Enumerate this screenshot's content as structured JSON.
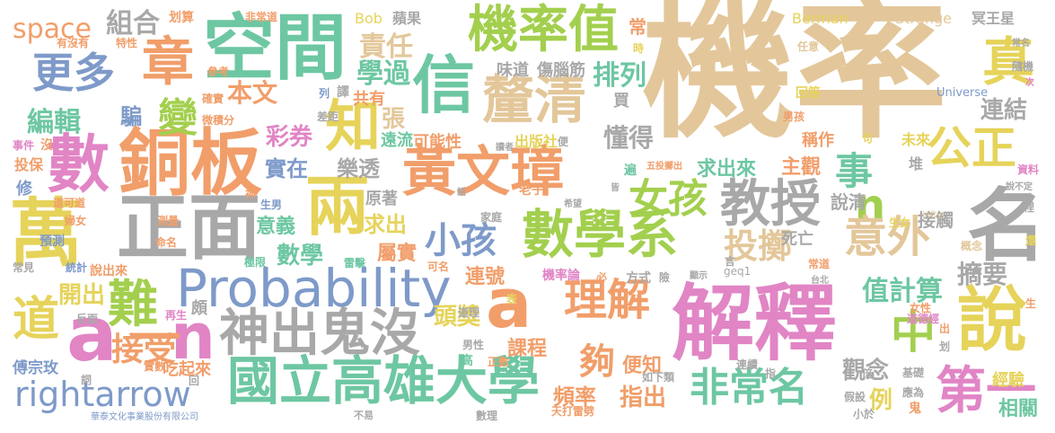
{
  "title": "",
  "palette": {
    "tan": "#e3c79a",
    "orange": "#f19e6a",
    "blue": "#7e9ac9",
    "green": "#a3cf4e",
    "gray": "#a8a8a8",
    "teal": "#6dc7a2",
    "pink": "#e185c5",
    "yellow": "#e6d35a"
  },
  "words": [
    {
      "id": "jilv",
      "text": "機率",
      "color": "tan"
    },
    {
      "id": "jieshi",
      "text": "解釋",
      "color": "pink"
    },
    {
      "id": "kongjian",
      "text": "空間",
      "color": "teal"
    },
    {
      "id": "tongban",
      "text": "銅板",
      "color": "orange"
    },
    {
      "id": "zhengmian",
      "text": "正面",
      "color": "gray"
    },
    {
      "id": "wan",
      "text": "萬",
      "color": "yellow"
    },
    {
      "id": "probability",
      "text": "Probability",
      "color": "blue"
    },
    {
      "id": "huangwenzhang",
      "text": "黃文璋",
      "color": "orange"
    },
    {
      "id": "guolixiongda",
      "text": "國立高雄大學",
      "color": "teal"
    },
    {
      "id": "jilvzhi",
      "text": "機率值",
      "color": "green"
    },
    {
      "id": "xin",
      "text": "信",
      "color": "teal"
    },
    {
      "id": "liang",
      "text": "兩",
      "color": "yellow"
    },
    {
      "id": "shuxuexi",
      "text": "數學系",
      "color": "green"
    },
    {
      "id": "jiaoshou",
      "text": "教授",
      "color": "gray"
    },
    {
      "id": "ming",
      "text": "名",
      "color": "gray"
    },
    {
      "id": "shenchuguimei",
      "text": "神出鬼沒",
      "color": "gray"
    },
    {
      "id": "a1",
      "text": "a",
      "color": "orange"
    },
    {
      "id": "a2",
      "text": "a",
      "color": "pink"
    },
    {
      "id": "n1",
      "text": "n",
      "color": "pink"
    },
    {
      "id": "n2",
      "text": "n",
      "color": "green"
    },
    {
      "id": "shuo",
      "text": "說",
      "color": "yellow"
    },
    {
      "id": "rightarrow",
      "text": "rightarrow",
      "color": "blue"
    },
    {
      "id": "feichangming",
      "text": "非常名",
      "color": "teal"
    },
    {
      "id": "diyi",
      "text": "第一",
      "color": "pink"
    },
    {
      "id": "liqing",
      "text": "釐清",
      "color": "tan"
    },
    {
      "id": "shu",
      "text": "數",
      "color": "pink"
    },
    {
      "id": "zhang",
      "text": "章",
      "color": "orange"
    },
    {
      "id": "gengduo",
      "text": "更多",
      "color": "blue"
    },
    {
      "id": "lijie",
      "text": "理解",
      "color": "orange"
    },
    {
      "id": "yiwai",
      "text": "意外",
      "color": "tan"
    },
    {
      "id": "gongzheng",
      "text": "公正",
      "color": "yellow"
    },
    {
      "id": "zhen",
      "text": "真",
      "color": "yellow"
    },
    {
      "id": "nan",
      "text": "難",
      "color": "green"
    },
    {
      "id": "zhong",
      "text": "中",
      "color": "green"
    },
    {
      "id": "dao",
      "text": "道",
      "color": "yellow"
    },
    {
      "id": "nuhai",
      "text": "女孩",
      "color": "green"
    },
    {
      "id": "xiaohai",
      "text": "小孩",
      "color": "blue"
    },
    {
      "id": "touzhi",
      "text": "投擲",
      "color": "tan"
    },
    {
      "id": "zhi",
      "text": "知",
      "color": "yellow"
    },
    {
      "id": "bian",
      "text": "變",
      "color": "green"
    },
    {
      "id": "shi",
      "text": "事",
      "color": "teal"
    },
    {
      "id": "jieshou",
      "text": "接受",
      "color": "orange"
    },
    {
      "id": "yi",
      "text": "一",
      "color": "orange"
    },
    {
      "id": "gou",
      "text": "夠",
      "color": "orange"
    },
    {
      "id": "bianji",
      "text": "編輯",
      "color": "teal"
    },
    {
      "id": "space",
      "text": "space",
      "color": "orange"
    },
    {
      "id": "zuhe",
      "text": "組合",
      "color": "gray"
    },
    {
      "id": "zeren",
      "text": "責任",
      "color": "tan"
    },
    {
      "id": "xueguo",
      "text": "學過",
      "color": "teal"
    },
    {
      "id": "pailie",
      "text": "排列",
      "color": "teal"
    },
    {
      "id": "benwen",
      "text": "本文",
      "color": "orange"
    },
    {
      "id": "pian",
      "text": "騙",
      "color": "blue"
    },
    {
      "id": "caiquan",
      "text": "彩券",
      "color": "pink"
    },
    {
      "id": "zhang2",
      "text": "張",
      "color": "tan"
    },
    {
      "id": "shizai",
      "text": "實在",
      "color": "blue"
    },
    {
      "id": "letou",
      "text": "樂透",
      "color": "gray"
    },
    {
      "id": "dongde",
      "text": "懂得",
      "color": "gray"
    },
    {
      "id": "qiuchulai",
      "text": "求出來",
      "color": "teal"
    },
    {
      "id": "zhuguan",
      "text": "主觀",
      "color": "orange"
    },
    {
      "id": "lianjie",
      "text": "連結",
      "color": "gray"
    },
    {
      "id": "zhijisuan",
      "text": "值計算",
      "color": "teal"
    },
    {
      "id": "zhaiyao",
      "text": "摘要",
      "color": "gray"
    },
    {
      "id": "yiyi",
      "text": "意義",
      "color": "teal"
    },
    {
      "id": "qiuchu",
      "text": "求出",
      "color": "yellow"
    },
    {
      "id": "shuxue",
      "text": "數學",
      "color": "teal"
    },
    {
      "id": "shushi",
      "text": "屬實",
      "color": "orange"
    },
    {
      "id": "kaichu",
      "text": "開出",
      "color": "yellow"
    },
    {
      "id": "toujiang",
      "text": "頭獎",
      "color": "yellow"
    },
    {
      "id": "kecheng",
      "text": "課程",
      "color": "orange"
    },
    {
      "id": "zhichu",
      "text": "指出",
      "color": "orange"
    },
    {
      "id": "guannian",
      "text": "觀念",
      "color": "gray"
    },
    {
      "id": "li",
      "text": "例",
      "color": "yellow"
    },
    {
      "id": "pinlv",
      "text": "頻率",
      "color": "orange"
    },
    {
      "id": "bianzhi",
      "text": "便知",
      "color": "orange"
    },
    {
      "id": "chuanzongmei",
      "text": "傅宗玫",
      "color": "blue"
    },
    {
      "id": "chiqilai",
      "text": "吃起來",
      "color": "orange"
    },
    {
      "id": "jingyan",
      "text": "經驗",
      "color": "yellow"
    },
    {
      "id": "xiangguan",
      "text": "相關",
      "color": "teal"
    },
    {
      "id": "shuoqing",
      "text": "說清",
      "color": "gray"
    },
    {
      "id": "jiechu",
      "text": "接觸",
      "color": "gray"
    },
    {
      "id": "keneng",
      "text": "可能性",
      "color": "orange"
    },
    {
      "id": "yuanliu",
      "text": "遠流",
      "color": "teal"
    },
    {
      "id": "chuban",
      "text": "出版社",
      "color": "yellow"
    },
    {
      "id": "chengzuo",
      "text": "稱作",
      "color": "orange"
    },
    {
      "id": "lianhao",
      "text": "連號",
      "color": "orange"
    },
    {
      "id": "gongyou",
      "text": "共有",
      "color": "orange"
    },
    {
      "id": "shangnao",
      "text": "傷腦筋",
      "color": "gray"
    },
    {
      "id": "weidao",
      "text": "味道",
      "color": "gray"
    },
    {
      "id": "yuanzhu",
      "text": "原著",
      "color": "gray"
    },
    {
      "id": "sihang",
      "text": "死亡",
      "color": "gray"
    },
    {
      "id": "laozi",
      "text": "老子",
      "color": "orange"
    },
    {
      "id": "jilvlun",
      "text": "機率論",
      "color": "pink"
    },
    {
      "id": "yuce",
      "text": "預測",
      "color": "blue"
    },
    {
      "id": "shuochulai",
      "text": "說出來",
      "color": "orange"
    },
    {
      "id": "fangshi",
      "text": "方式",
      "color": "gray"
    },
    {
      "id": "bob",
      "text": "Bob",
      "color": "yellow"
    },
    {
      "id": "pingguo",
      "text": "蘋果",
      "color": "gray"
    },
    {
      "id": "berman",
      "text": "Berman",
      "color": "yellow"
    },
    {
      "id": "strange",
      "text": "Strange",
      "color": "tan"
    },
    {
      "id": "mingwangxing",
      "text": "冥王星",
      "color": "gray"
    },
    {
      "id": "universe",
      "text": "Universe",
      "color": "blue"
    },
    {
      "id": "huasuan",
      "text": "划算",
      "color": "orange"
    },
    {
      "id": "feichangdao",
      "text": "非常道",
      "color": "orange"
    },
    {
      "id": "youmeiyou",
      "text": "有沒有",
      "color": "orange"
    },
    {
      "id": "texing",
      "text": "特性",
      "color": "orange"
    },
    {
      "id": "cankao",
      "text": "參考",
      "color": "orange"
    },
    {
      "id": "queshi",
      "text": "確實",
      "color": "orange"
    },
    {
      "id": "weijifen",
      "text": "微積分",
      "color": "orange"
    },
    {
      "id": "lie",
      "text": "列",
      "color": "blue"
    },
    {
      "id": "yi2",
      "text": "譯",
      "color": "gray"
    },
    {
      "id": "chaju",
      "text": "差距",
      "color": "gray"
    },
    {
      "id": "huida",
      "text": "回答",
      "color": "yellow"
    },
    {
      "id": "renyi",
      "text": "任意",
      "color": "tan"
    },
    {
      "id": "nanhai",
      "text": "男孩",
      "color": "orange"
    },
    {
      "id": "weilai",
      "text": "未來",
      "color": "yellow"
    },
    {
      "id": "shijian",
      "text": "事件",
      "color": "pink"
    },
    {
      "id": "toubao",
      "text": "投保",
      "color": "orange"
    },
    {
      "id": "xiu",
      "text": "修",
      "color": "blue"
    },
    {
      "id": "daokedao",
      "text": "道可道",
      "color": "orange"
    },
    {
      "id": "funu",
      "text": "婦女",
      "color": "orange"
    },
    {
      "id": "tongji",
      "text": "統計",
      "color": "blue"
    },
    {
      "id": "changjian",
      "text": "常見",
      "color": "gray"
    },
    {
      "id": "fanmian",
      "text": "反面",
      "color": "gray"
    },
    {
      "id": "ci",
      "text": "詞",
      "color": "gray"
    },
    {
      "id": "celiang",
      "text": "測量",
      "color": "orange"
    },
    {
      "id": "mingming",
      "text": "命名",
      "color": "orange"
    },
    {
      "id": "zaisheng",
      "text": "再生",
      "color": "pink"
    },
    {
      "id": "po",
      "text": "頗",
      "color": "gray"
    },
    {
      "id": "shishu",
      "text": "實數",
      "color": "orange"
    },
    {
      "id": "jixian",
      "text": "極限",
      "color": "teal"
    },
    {
      "id": "leiji",
      "text": "雷擊",
      "color": "teal"
    },
    {
      "id": "kering",
      "text": "可名",
      "color": "orange"
    },
    {
      "id": "daoli",
      "text": "道理",
      "color": "gray"
    },
    {
      "id": "nanxing",
      "text": "男性",
      "color": "gray"
    },
    {
      "id": "gao",
      "text": "高",
      "color": "teal"
    },
    {
      "id": "zhengshu",
      "text": "正數",
      "color": "orange"
    },
    {
      "id": "biao",
      "text": "表",
      "color": "yellow"
    },
    {
      "id": "jiating",
      "text": "家庭",
      "color": "gray"
    },
    {
      "id": "duzhe",
      "text": "讀者",
      "color": "gray"
    },
    {
      "id": "hua",
      "text": "話",
      "color": "gray"
    },
    {
      "id": "bi",
      "text": "必",
      "color": "orange"
    },
    {
      "id": "xiwang",
      "text": "希望",
      "color": "gray"
    },
    {
      "id": "geq1",
      "text": "geq1",
      "color": "gray"
    },
    {
      "id": "xian",
      "text": "險",
      "color": "gray"
    },
    {
      "id": "xianshi",
      "text": "顯示",
      "color": "gray"
    },
    {
      "id": "yan",
      "text": "言",
      "color": "gray"
    },
    {
      "id": "changdao",
      "text": "常道",
      "color": "orange"
    },
    {
      "id": "taibei",
      "text": "台北",
      "color": "gray"
    },
    {
      "id": "nuxing",
      "text": "女性",
      "color": "orange"
    },
    {
      "id": "daodejing",
      "text": "道德經",
      "color": "pink"
    },
    {
      "id": "ruxialei",
      "text": "如下類",
      "color": "gray"
    },
    {
      "id": "lianxu",
      "text": "連續",
      "color": "gray"
    },
    {
      "id": "zhi2",
      "text": "指",
      "color": "gray"
    },
    {
      "id": "jichu",
      "text": "基礎",
      "color": "gray"
    },
    {
      "id": "yingwei",
      "text": "應為",
      "color": "gray"
    },
    {
      "id": "jiashe",
      "text": "假設",
      "color": "gray"
    },
    {
      "id": "xiaoyu",
      "text": "小於",
      "color": "gray"
    },
    {
      "id": "gui",
      "text": "鬼",
      "color": "orange"
    },
    {
      "id": "tiandaleipi",
      "text": "天打雷劈",
      "color": "orange"
    },
    {
      "id": "shuli",
      "text": "數理",
      "color": "gray"
    },
    {
      "id": "buyi",
      "text": "不易",
      "color": "gray"
    },
    {
      "id": "huatai",
      "text": "華泰文化事業股份有限公司",
      "color": "blue"
    },
    {
      "id": "wutouzhi",
      "text": "五投擲出",
      "color": "orange"
    },
    {
      "id": "shuobuding",
      "text": "說不定",
      "color": "gray"
    },
    {
      "id": "ziliao",
      "text": "資料",
      "color": "pink"
    },
    {
      "id": "li2",
      "text": "裡",
      "color": "gray"
    },
    {
      "id": "gainian",
      "text": "概念",
      "color": "tan"
    },
    {
      "id": "jishu",
      "text": "計數",
      "color": "gray"
    },
    {
      "id": "huan",
      "text": "還",
      "color": "yellow"
    },
    {
      "id": "infty",
      "text": "infty",
      "color": "tan"
    },
    {
      "id": "shengnu",
      "text": "生女",
      "color": "yellow"
    },
    {
      "id": "shengnan",
      "text": "生男",
      "color": "blue"
    },
    {
      "id": "shen",
      "text": "神",
      "color": "orange"
    },
    {
      "id": "jie",
      "text": "皆",
      "color": "gray"
    },
    {
      "id": "chang",
      "text": "常",
      "color": "orange"
    },
    {
      "id": "mai",
      "text": "買",
      "color": "gray"
    },
    {
      "id": "shi2",
      "text": "時",
      "color": "yellow"
    },
    {
      "id": "bian2",
      "text": "遍",
      "color": "teal"
    },
    {
      "id": "dui",
      "text": "堆",
      "color": "gray"
    },
    {
      "id": "mei",
      "text": "沒",
      "color": "orange"
    },
    {
      "id": "hui",
      "text": "回",
      "color": "gray"
    },
    {
      "id": "bei",
      "text": "倍",
      "color": "gray"
    },
    {
      "id": "hua2",
      "text": "划",
      "color": "gray"
    },
    {
      "id": "chu",
      "text": "出",
      "color": "orange"
    },
    {
      "id": "sheng",
      "text": "生",
      "color": "orange"
    },
    {
      "id": "ju",
      "text": "句",
      "color": "yellow"
    },
    {
      "id": "changming",
      "text": "常名",
      "color": "gray"
    },
    {
      "id": "suiji",
      "text": "隨機",
      "color": "gray"
    },
    {
      "id": "ci2",
      "text": "次",
      "color": "pink"
    },
    {
      "id": "bian3",
      "text": "便",
      "color": "gray"
    }
  ]
}
